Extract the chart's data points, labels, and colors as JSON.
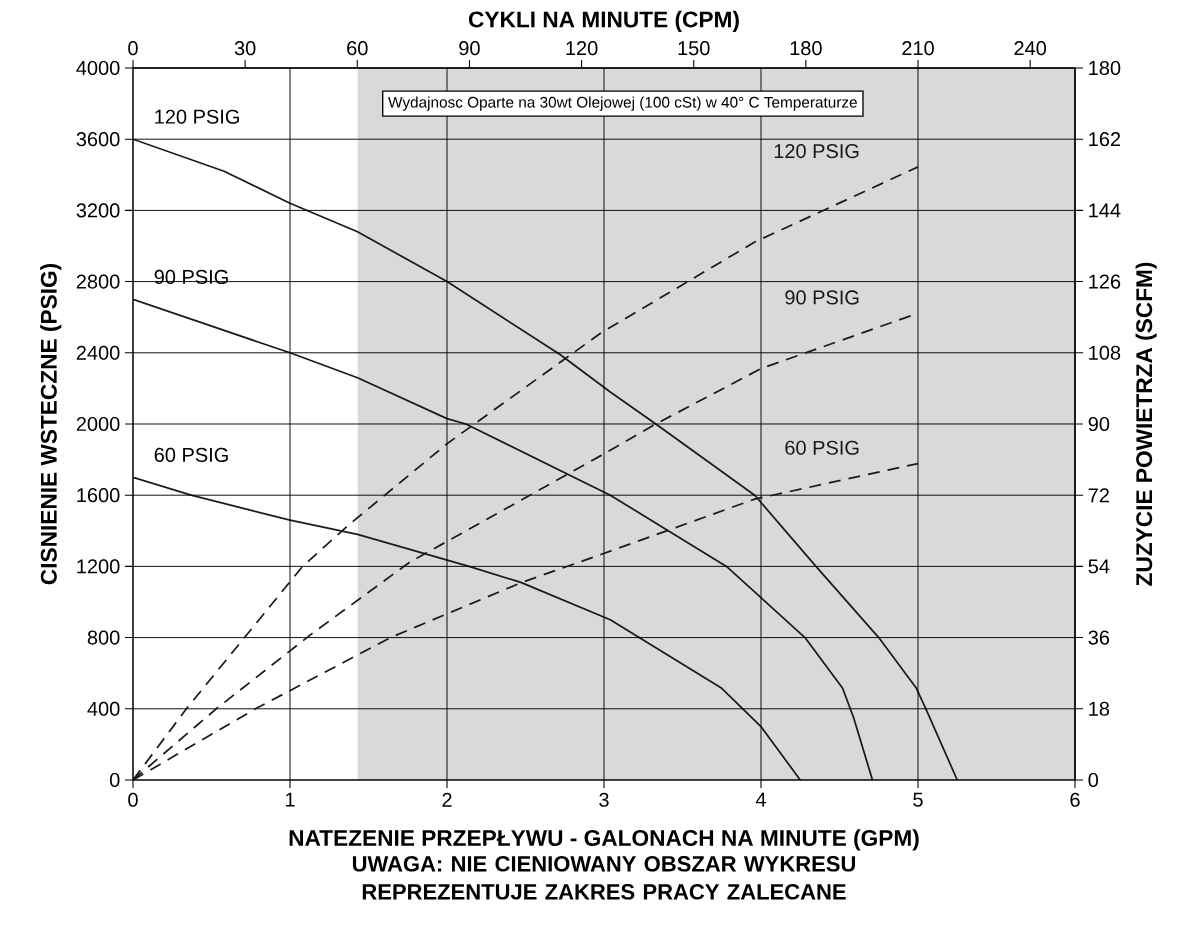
{
  "chart_data": {
    "type": "line",
    "x2label": "CYKLI NA MINUTE (CPM)",
    "xlabel": "NATEZENIE PRZEPŁYWU - GALONACH NA MINUTE (GPM)",
    "ylabel": "CISNIENIE WSTECZNE (PSIG)",
    "y2label": "ZUZYCIE POWIETRZA (SCFM)",
    "xlim": [
      0,
      6
    ],
    "xticks": [
      0,
      1,
      2,
      3,
      4,
      5,
      6
    ],
    "x2lim": [
      0,
      252
    ],
    "x2ticks": [
      0,
      30,
      60,
      90,
      120,
      150,
      180,
      210,
      240
    ],
    "ylim": [
      0,
      4000
    ],
    "yticks": [
      0,
      400,
      800,
      1200,
      1600,
      2000,
      2400,
      2800,
      3200,
      3600,
      4000
    ],
    "y2lim": [
      0,
      180
    ],
    "y2ticks": [
      0,
      18,
      36,
      54,
      72,
      90,
      108,
      126,
      144,
      162,
      180
    ],
    "grid": true,
    "bands": [
      {
        "axis": "x",
        "from": 1.43,
        "to": 6,
        "color": "#d9d9d9"
      }
    ],
    "annotations": [
      "Wydajnosc Oparte na 30wt Olejowej (100 cSt) w 40° C Temperaturze",
      "UWAGA: NIE CIENIOWANY OBSZAR WYKRESU REPREZENTUJE ZAKRES PRACY ZALECANE"
    ],
    "series": [
      {
        "name": "120 PSIG",
        "color": "#1a1a1a",
        "line_style": "solid",
        "x": [
          0,
          0.58,
          1,
          1.43,
          2,
          2.72,
          3.04,
          3.33,
          3.96,
          4.35,
          4.75,
          4.99,
          5.05,
          5.25
        ],
        "values": [
          3600,
          3420,
          3240,
          3080,
          2800,
          2390,
          2180,
          2000,
          1600,
          1200,
          800,
          515,
          400,
          0
        ]
      },
      {
        "name": "90 PSIG",
        "color": "#1a1a1a",
        "line_style": "solid",
        "x": [
          0,
          1,
          1.43,
          2,
          2.12,
          3.04,
          3.78,
          4.28,
          4.52,
          4.59,
          4.71
        ],
        "values": [
          2700,
          2400,
          2260,
          2030,
          2000,
          1600,
          1200,
          800,
          515,
          350,
          0
        ]
      },
      {
        "name": "60 PSIG",
        "color": "#1a1a1a",
        "line_style": "solid",
        "x": [
          0,
          0.37,
          1,
          1.43,
          2.14,
          2.47,
          3.04,
          3.75,
          4,
          4.25
        ],
        "values": [
          1700,
          1600,
          1460,
          1380,
          1200,
          1110,
          900,
          515,
          300,
          0
        ]
      },
      {
        "name": "120 PSIG",
        "color": "#1a1a1a",
        "line_style": "dashed",
        "axis": "y2",
        "x": [
          0,
          0.34,
          1.08,
          1.36,
          2,
          2.98,
          3.96,
          5
        ],
        "values": [
          0,
          18,
          54,
          64,
          85,
          113,
          136,
          155
        ]
      },
      {
        "name": "90 PSIG",
        "color": "#1a1a1a",
        "line_style": "dashed",
        "axis": "y2",
        "x": [
          0,
          0.53,
          1.14,
          1.76,
          2.98,
          3.33,
          4,
          5
        ],
        "values": [
          0,
          18,
          37,
          55,
          82,
          90,
          104,
          118
        ]
      },
      {
        "name": "60 PSIG",
        "color": "#1a1a1a",
        "line_style": "dashed",
        "axis": "y2",
        "x": [
          0,
          0.78,
          1.64,
          2.48,
          2.98,
          3.96,
          5
        ],
        "values": [
          0,
          18,
          36,
          50,
          57,
          71,
          80
        ]
      }
    ]
  }
}
